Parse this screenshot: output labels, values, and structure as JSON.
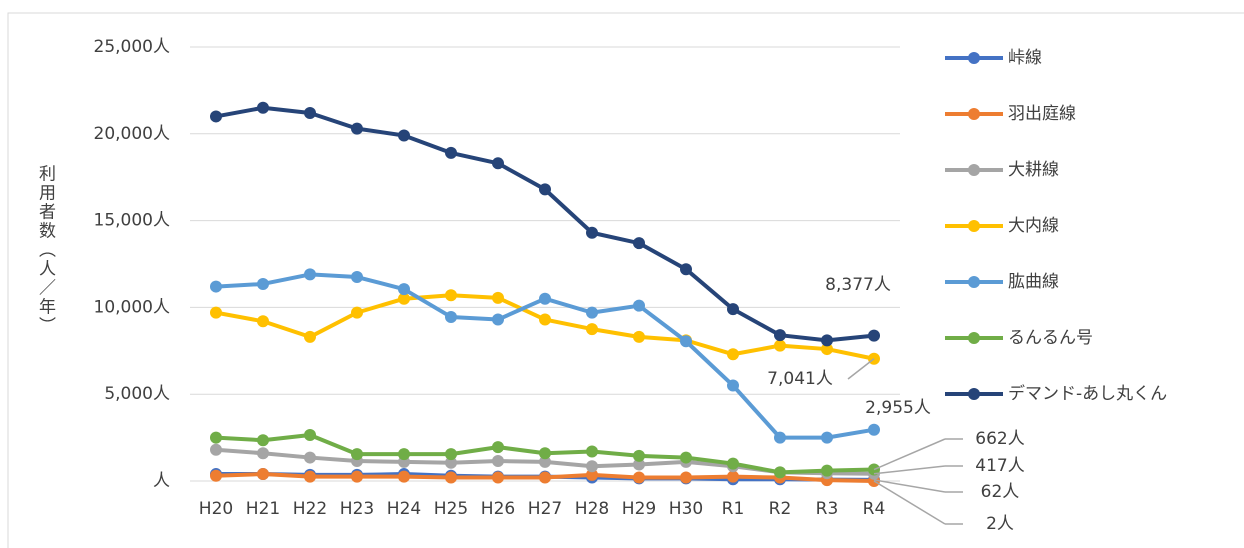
{
  "chart_data": {
    "type": "line",
    "y_label": "利用者数（人／年）",
    "categories": [
      "H20",
      "H21",
      "H22",
      "H23",
      "H24",
      "H25",
      "H26",
      "H27",
      "H28",
      "H29",
      "H30",
      "R1",
      "R2",
      "R3",
      "R4"
    ],
    "ylim": [
      0,
      25000
    ],
    "yticks": [
      {
        "value": 0,
        "label": "人"
      },
      {
        "value": 5000,
        "label": "5,000人"
      },
      {
        "value": 10000,
        "label": "10,000人"
      },
      {
        "value": 15000,
        "label": "15,000人"
      },
      {
        "value": 20000,
        "label": "20,000人"
      },
      {
        "value": 25000,
        "label": "25,000人"
      }
    ],
    "grid": true,
    "legend": "right",
    "series": [
      {
        "name": "峠線",
        "color": "#4472c4",
        "values": [
          400,
          400,
          350,
          350,
          400,
          300,
          250,
          250,
          200,
          150,
          150,
          100,
          100,
          80,
          62
        ],
        "value_labels": [
          null,
          null,
          null,
          null,
          null,
          null,
          null,
          null,
          null,
          null,
          null,
          null,
          null,
          null,
          "62人"
        ]
      },
      {
        "name": "羽出庭線",
        "color": "#ed7d31",
        "values": [
          300,
          400,
          250,
          250,
          250,
          200,
          200,
          200,
          350,
          200,
          200,
          250,
          200,
          50,
          2
        ],
        "value_labels": [
          null,
          null,
          null,
          null,
          null,
          null,
          null,
          null,
          null,
          null,
          null,
          null,
          null,
          null,
          "2人"
        ]
      },
      {
        "name": "大耕線",
        "color": "#a5a5a5",
        "values": [
          1800,
          1600,
          1350,
          1150,
          1100,
          1050,
          1150,
          1100,
          850,
          950,
          1100,
          850,
          500,
          450,
          417
        ],
        "value_labels": [
          null,
          null,
          null,
          null,
          null,
          null,
          null,
          null,
          null,
          null,
          null,
          null,
          null,
          null,
          "417人"
        ]
      },
      {
        "name": "大内線",
        "color": "#ffc000",
        "values": [
          9700,
          9200,
          8300,
          9700,
          10500,
          10700,
          10550,
          9300,
          8750,
          8300,
          8100,
          7300,
          7800,
          7600,
          7041
        ],
        "value_labels": [
          null,
          null,
          null,
          null,
          null,
          null,
          null,
          null,
          null,
          null,
          null,
          null,
          null,
          null,
          "7,041人"
        ]
      },
      {
        "name": "肱曲線",
        "color": "#5b9bd5",
        "values": [
          11200,
          11350,
          11900,
          11750,
          11050,
          9450,
          9300,
          10500,
          9700,
          10100,
          8050,
          5500,
          2500,
          2500,
          2955
        ],
        "value_labels": [
          null,
          null,
          null,
          null,
          null,
          null,
          null,
          null,
          null,
          null,
          null,
          null,
          null,
          null,
          "2,955人"
        ]
      },
      {
        "name": "るんるん号",
        "color": "#70ad47",
        "values": [
          2500,
          2350,
          2650,
          1550,
          1550,
          1550,
          1950,
          1600,
          1700,
          1450,
          1350,
          1000,
          500,
          600,
          662
        ],
        "value_labels": [
          null,
          null,
          null,
          null,
          null,
          null,
          null,
          null,
          null,
          null,
          null,
          null,
          null,
          null,
          "662人"
        ]
      },
      {
        "name": "デマンド-あし丸くん",
        "color": "#264478",
        "values": [
          21000,
          21500,
          21200,
          20300,
          19900,
          18900,
          18300,
          16800,
          14300,
          13700,
          12200,
          9900,
          8400,
          8100,
          8377
        ],
        "value_labels": [
          null,
          null,
          null,
          null,
          null,
          null,
          null,
          null,
          null,
          null,
          null,
          null,
          null,
          null,
          "8,377人"
        ]
      }
    ]
  }
}
